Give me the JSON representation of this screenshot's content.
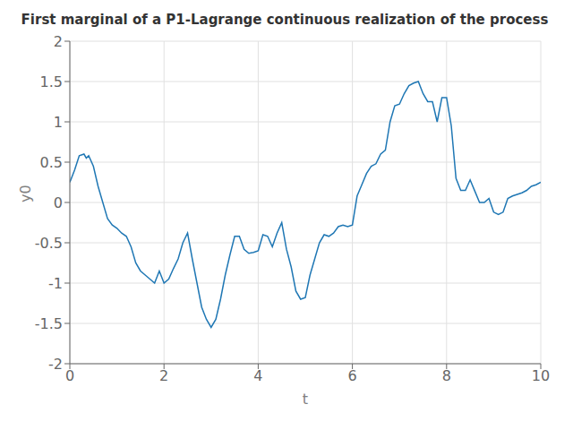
{
  "chart_data": {
    "type": "line",
    "title": "First marginal of a P1-Lagrange continuous realization of the process",
    "xlabel": "t",
    "ylabel": "y0",
    "xlim": [
      0,
      10
    ],
    "xticks": [
      0,
      2,
      4,
      6,
      8,
      10
    ],
    "ylim": [
      -2,
      2
    ],
    "yticks": [
      -2,
      -1.5,
      -1,
      -0.5,
      0,
      0.5,
      1,
      1.5,
      2
    ],
    "color": "#1f77b4",
    "grid": true,
    "x": [
      0.0,
      0.1,
      0.2,
      0.3,
      0.35,
      0.4,
      0.5,
      0.6,
      0.7,
      0.8,
      0.9,
      1.0,
      1.1,
      1.2,
      1.3,
      1.4,
      1.5,
      1.6,
      1.7,
      1.8,
      1.9,
      2.0,
      2.1,
      2.2,
      2.3,
      2.4,
      2.5,
      2.6,
      2.7,
      2.8,
      2.9,
      3.0,
      3.1,
      3.2,
      3.3,
      3.4,
      3.5,
      3.6,
      3.7,
      3.8,
      3.9,
      4.0,
      4.1,
      4.2,
      4.3,
      4.4,
      4.5,
      4.6,
      4.7,
      4.8,
      4.9,
      5.0,
      5.1,
      5.2,
      5.3,
      5.4,
      5.5,
      5.6,
      5.7,
      5.8,
      5.9,
      6.0,
      6.1,
      6.2,
      6.3,
      6.4,
      6.5,
      6.6,
      6.7,
      6.8,
      6.9,
      7.0,
      7.1,
      7.2,
      7.3,
      7.4,
      7.5,
      7.6,
      7.7,
      7.8,
      7.9,
      8.0,
      8.1,
      8.2,
      8.3,
      8.4,
      8.5,
      8.6,
      8.7,
      8.8,
      8.9,
      9.0,
      9.1,
      9.2,
      9.3,
      9.4,
      9.5,
      9.6,
      9.7,
      9.8,
      9.9,
      10.0
    ],
    "values": [
      0.25,
      0.4,
      0.58,
      0.6,
      0.55,
      0.58,
      0.45,
      0.2,
      0.0,
      -0.2,
      -0.28,
      -0.32,
      -0.38,
      -0.42,
      -0.55,
      -0.75,
      -0.85,
      -0.9,
      -0.95,
      -1.0,
      -0.85,
      -1.0,
      -0.95,
      -0.82,
      -0.7,
      -0.5,
      -0.38,
      -0.7,
      -1.0,
      -1.3,
      -1.45,
      -1.55,
      -1.45,
      -1.2,
      -0.9,
      -0.65,
      -0.42,
      -0.42,
      -0.58,
      -0.63,
      -0.62,
      -0.6,
      -0.4,
      -0.42,
      -0.55,
      -0.38,
      -0.25,
      -0.58,
      -0.8,
      -1.1,
      -1.2,
      -1.18,
      -0.9,
      -0.7,
      -0.5,
      -0.4,
      -0.42,
      -0.38,
      -0.3,
      -0.28,
      -0.3,
      -0.28,
      0.08,
      0.22,
      0.36,
      0.45,
      0.48,
      0.6,
      0.65,
      1.0,
      1.2,
      1.22,
      1.35,
      1.45,
      1.48,
      1.5,
      1.35,
      1.25,
      1.25,
      1.0,
      1.3,
      1.3,
      0.95,
      0.3,
      0.15,
      0.15,
      0.28,
      0.14,
      0.0,
      0.0,
      0.05,
      -0.12,
      -0.15,
      -0.12,
      0.05,
      0.08,
      0.1,
      0.12,
      0.15,
      0.2,
      0.22,
      0.25
    ]
  }
}
